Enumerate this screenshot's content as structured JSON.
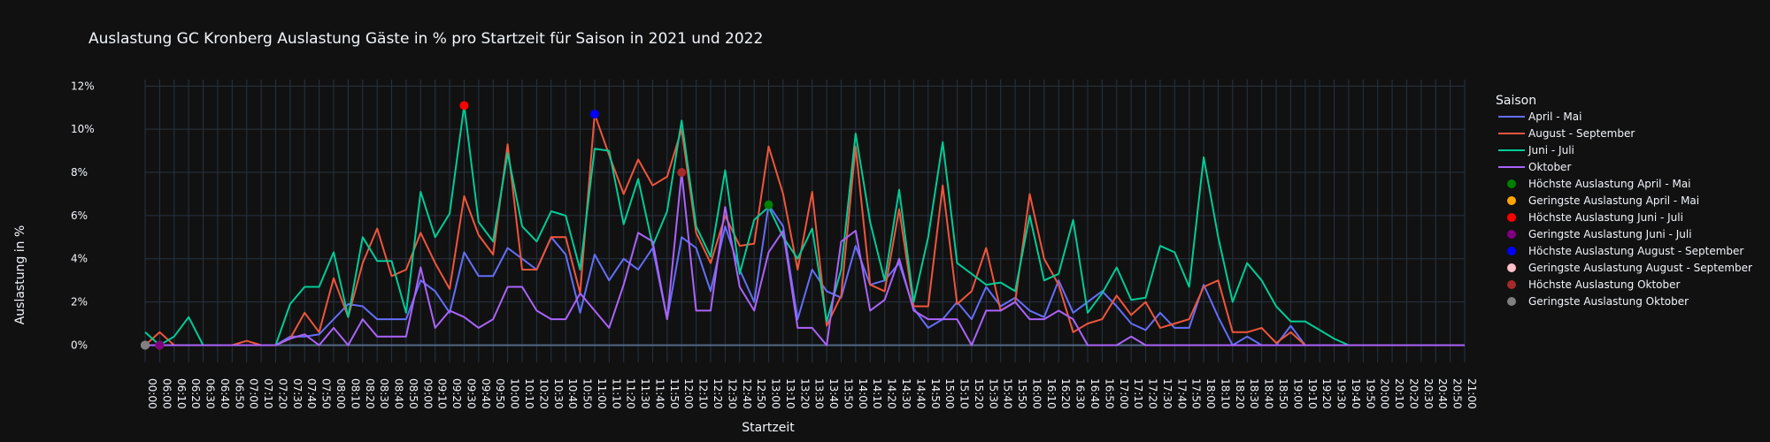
{
  "chart_data": {
    "type": "line",
    "title": "Auslastung GC Kronberg Auslastung Gäste in % pro Startzeit für Saison in 2021 und 2022",
    "xlabel": "Startzeit",
    "ylabel": "Auslastung in %",
    "ylim": [
      -0.8,
      12.3
    ],
    "yticks": [
      0,
      2,
      4,
      6,
      8,
      10,
      12
    ],
    "ytick_suffix": "%",
    "grid": true,
    "legend_title": "Saison",
    "legend_position": "right",
    "background": "#111111",
    "x": [
      "00:00",
      "06:00",
      "06:10",
      "06:20",
      "06:30",
      "06:40",
      "06:50",
      "07:00",
      "07:10",
      "07:20",
      "07:30",
      "07:40",
      "07:50",
      "08:00",
      "08:10",
      "08:20",
      "08:30",
      "08:40",
      "08:50",
      "09:00",
      "09:10",
      "09:20",
      "09:30",
      "09:40",
      "09:50",
      "10:00",
      "10:10",
      "10:20",
      "10:30",
      "10:40",
      "10:50",
      "11:00",
      "11:10",
      "11:20",
      "11:30",
      "11:40",
      "11:50",
      "12:00",
      "12:10",
      "12:20",
      "12:30",
      "12:40",
      "12:50",
      "13:00",
      "13:10",
      "13:20",
      "13:30",
      "13:40",
      "13:50",
      "14:00",
      "14:10",
      "14:20",
      "14:30",
      "14:40",
      "14:50",
      "15:00",
      "15:10",
      "15:20",
      "15:30",
      "15:40",
      "15:50",
      "16:00",
      "16:10",
      "16:20",
      "16:30",
      "16:40",
      "16:50",
      "17:00",
      "17:10",
      "17:20",
      "17:30",
      "17:40",
      "17:50",
      "18:00",
      "18:10",
      "18:20",
      "18:30",
      "18:40",
      "18:50",
      "19:00",
      "19:10",
      "19:20",
      "19:30",
      "19:40",
      "19:50",
      "20:00",
      "20:10",
      "20:20",
      "20:30",
      "20:40",
      "20:50",
      "21:00"
    ],
    "series": [
      {
        "name": "April - Mai",
        "color": "#636efa",
        "values": [
          0,
          0,
          0,
          0,
          0,
          0,
          0,
          0,
          0,
          0,
          0.4,
          0.4,
          0.5,
          1.2,
          1.9,
          1.8,
          1.2,
          1.2,
          1.2,
          3.0,
          2.5,
          1.5,
          4.3,
          3.2,
          3.2,
          4.5,
          4.0,
          3.5,
          5.0,
          4.2,
          1.5,
          4.2,
          3.0,
          4.0,
          3.5,
          4.5,
          1.2,
          5.0,
          4.5,
          2.5,
          5.5,
          3.5,
          2.0,
          6.5,
          5.5,
          1.2,
          3.5,
          2.5,
          2.2,
          4.6,
          2.8,
          3.0,
          3.8,
          1.7,
          0.8,
          1.2,
          2.0,
          1.2,
          2.7,
          1.8,
          2.2,
          1.6,
          1.3,
          3.0,
          1.5,
          2.0,
          2.5,
          1.8,
          1.0,
          0.7,
          1.5,
          0.8,
          0.8,
          2.8,
          1.3,
          0,
          0.4,
          0,
          0,
          0.9,
          0,
          0,
          0,
          0,
          0,
          0,
          0,
          0,
          0,
          0,
          0,
          0
        ]
      },
      {
        "name": "August - September",
        "color": "#ef553b",
        "values": [
          0,
          0.6,
          0,
          0,
          0,
          0,
          0,
          0.2,
          0,
          0,
          0.3,
          1.5,
          0.6,
          3.1,
          1.3,
          3.8,
          5.4,
          3.2,
          3.5,
          5.2,
          3.8,
          2.6,
          6.9,
          5.1,
          4.2,
          9.3,
          3.5,
          3.5,
          5.0,
          5.0,
          2.4,
          10.7,
          8.8,
          7.0,
          8.6,
          7.4,
          7.8,
          10.0,
          5.2,
          3.8,
          6.0,
          4.6,
          4.7,
          9.2,
          7.0,
          3.5,
          7.1,
          0.9,
          2.3,
          9.2,
          2.8,
          2.5,
          6.3,
          1.8,
          1.8,
          7.4,
          1.9,
          2.5,
          4.5,
          1.6,
          2.0,
          7.0,
          4.0,
          2.8,
          0.6,
          1.0,
          1.2,
          2.3,
          1.4,
          2.0,
          0.8,
          1.0,
          1.2,
          2.7,
          3.0,
          0.6,
          0.6,
          0.8,
          0.1,
          0.6,
          0,
          0,
          0,
          0,
          0,
          0,
          0,
          0,
          0,
          0,
          0,
          0
        ]
      },
      {
        "name": "Juni - Juli",
        "color": "#00cc96",
        "values": [
          0.6,
          0,
          0.4,
          1.3,
          0,
          0,
          0,
          0,
          0,
          0,
          1.9,
          2.7,
          2.7,
          4.3,
          1.3,
          5.0,
          3.9,
          3.9,
          1.5,
          7.1,
          5.0,
          6.1,
          11.1,
          5.7,
          4.8,
          8.9,
          5.5,
          4.8,
          6.2,
          6.0,
          3.5,
          9.1,
          9.0,
          5.6,
          7.7,
          4.6,
          6.2,
          10.4,
          5.5,
          4.1,
          8.1,
          3.3,
          5.8,
          6.4,
          5.0,
          4.0,
          5.4,
          1.1,
          3.5,
          9.8,
          5.7,
          3.0,
          7.2,
          2.0,
          5.0,
          9.4,
          3.8,
          3.3,
          2.8,
          2.9,
          2.5,
          6.0,
          3.0,
          3.3,
          5.8,
          1.5,
          2.4,
          3.6,
          2.1,
          2.2,
          4.6,
          4.3,
          2.7,
          8.7,
          5.0,
          2.0,
          3.8,
          3.0,
          1.8,
          1.1,
          1.1,
          0.7,
          0.3,
          0,
          0,
          0,
          0,
          0,
          0,
          0,
          0,
          0
        ]
      },
      {
        "name": "Oktober",
        "color": "#ab63fa",
        "values": [
          0,
          0,
          0,
          0,
          0,
          0,
          0,
          0,
          0,
          0,
          0.3,
          0.5,
          0,
          0.8,
          0,
          1.2,
          0.4,
          0.4,
          0.4,
          3.6,
          0.8,
          1.6,
          1.3,
          0.8,
          1.2,
          2.7,
          2.7,
          1.6,
          1.2,
          1.2,
          2.4,
          1.6,
          0.8,
          2.8,
          5.2,
          4.8,
          1.2,
          8.0,
          1.6,
          1.6,
          6.4,
          2.7,
          1.6,
          4.3,
          5.3,
          0.8,
          0.8,
          0,
          4.8,
          5.3,
          1.6,
          2.1,
          4.0,
          1.6,
          1.2,
          1.2,
          1.2,
          0,
          1.6,
          1.6,
          2.0,
          1.2,
          1.2,
          1.6,
          1.2,
          0,
          0,
          0,
          0.4,
          0,
          0,
          0,
          0,
          0,
          0,
          0,
          0,
          0,
          0,
          0,
          0,
          0,
          0,
          0,
          0,
          0,
          0,
          0,
          0,
          0,
          0,
          0
        ]
      }
    ],
    "markers": [
      {
        "name": "Höchste Auslastung April - Mai",
        "color": "#008000",
        "x": "13:00",
        "y": 6.5
      },
      {
        "name": "Geringste Auslastung April - Mai",
        "color": "#ffa500",
        "x": "06:00",
        "y": 0
      },
      {
        "name": "Höchste Auslastung Juni - Juli",
        "color": "#ff0000",
        "x": "09:30",
        "y": 11.1
      },
      {
        "name": "Geringste Auslastung Juni - Juli",
        "color": "#800080",
        "x": "06:00",
        "y": 0
      },
      {
        "name": "Höchste Auslastung August - September",
        "color": "#0000ff",
        "x": "11:00",
        "y": 10.7
      },
      {
        "name": "Geringste Auslastung August - September",
        "color": "#ffc0cb",
        "x": "00:00",
        "y": 0
      },
      {
        "name": "Höchste Auslastung Oktober",
        "color": "#a52a2a",
        "x": "12:00",
        "y": 8.0
      },
      {
        "name": "Geringste Auslastung Oktober",
        "color": "#808080",
        "x": "00:00",
        "y": 0
      }
    ]
  }
}
